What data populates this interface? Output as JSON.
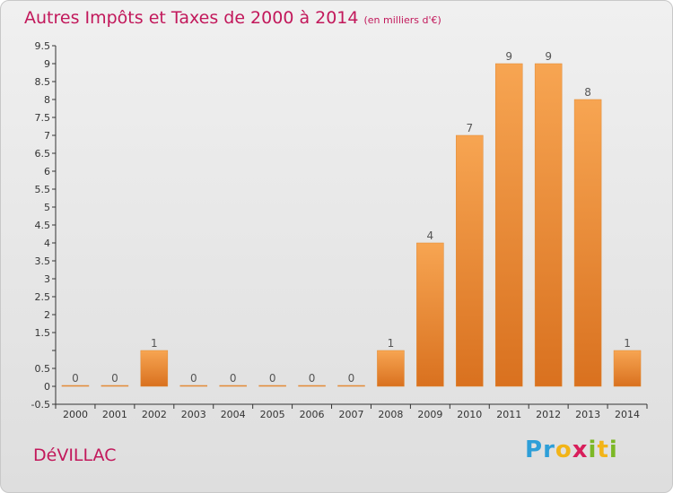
{
  "chart_data": {
    "type": "bar",
    "title": "Autres Impôts et Taxes de 2000 à 2014",
    "subtitle": "(en milliers d'€)",
    "categories": [
      "2000",
      "2001",
      "2002",
      "2003",
      "2004",
      "2005",
      "2006",
      "2007",
      "2008",
      "2009",
      "2010",
      "2011",
      "2012",
      "2013",
      "2014"
    ],
    "values": [
      0,
      0,
      1,
      0,
      0,
      0,
      0,
      0,
      1,
      4,
      7,
      9,
      9,
      8,
      1
    ],
    "data_labels": [
      "0",
      "0",
      "1",
      "0",
      "0",
      "0",
      "0",
      "0",
      "1",
      "4",
      "7",
      "9",
      "9",
      "8",
      "1"
    ],
    "ylim": [
      -0.5,
      9.5
    ],
    "yticks": [
      -0.5,
      0,
      0.5,
      1,
      1.5,
      2,
      2.5,
      3,
      3.5,
      4,
      4.5,
      5,
      5.5,
      6,
      6.5,
      7,
      7.5,
      8,
      8.5,
      9,
      9.5
    ],
    "ytick_labels": [
      "-0.5",
      "0",
      "0.5",
      "",
      "1.5",
      "2",
      "2.5",
      "3",
      "3.5",
      "4",
      "4.5",
      "5",
      "5.5",
      "6",
      "6.5",
      "7",
      "7.5",
      "8",
      "8.5",
      "9",
      "9.5"
    ],
    "grid": false,
    "bar_color_top": "#f7a552",
    "bar_color_bottom": "#d9711f"
  },
  "footer": {
    "commune": "DéVILLAC",
    "logo_letters": [
      "P",
      "r",
      "o",
      "x",
      "i",
      "t",
      "i"
    ],
    "logo_colors": [
      "#2e9fd8",
      "#2e9fd8",
      "#f2b418",
      "#d81e5b",
      "#7cb826",
      "#f2b418",
      "#7cb826"
    ]
  },
  "colors": {
    "title": "#c2185b",
    "axis": "#333333",
    "value_label": "#555555"
  }
}
